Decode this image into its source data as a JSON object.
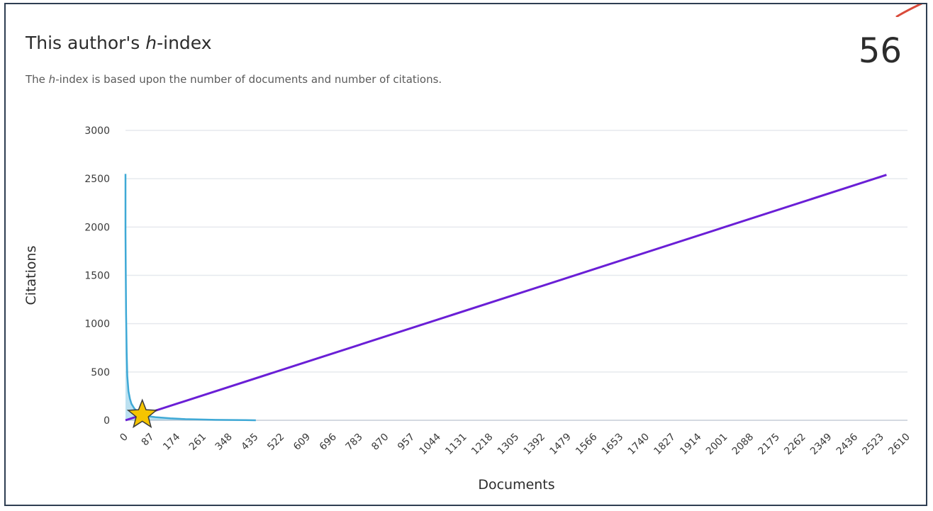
{
  "header": {
    "title_prefix": "This author's ",
    "title_italic": "h",
    "title_suffix": "-index",
    "subtitle_prefix": "The ",
    "subtitle_italic": "h",
    "subtitle_suffix": "-index is based upon the number of documents and number of citations.",
    "h_index_value": "56"
  },
  "colors": {
    "citations_curve": "#3fa9d6",
    "reference_line": "#6a1fd6",
    "star": "#f5c400",
    "grid": "#e6e9ee",
    "border": "#2e3e52",
    "accent": "#d94a3a"
  },
  "icons": {
    "marker": "star-icon"
  },
  "chart_data": {
    "type": "line",
    "xlabel": "Documents",
    "ylabel": "Citations",
    "xlim": [
      0,
      2610
    ],
    "ylim": [
      0,
      3000
    ],
    "x_ticks": [
      "0",
      "87",
      "174",
      "261",
      "348",
      "435",
      "522",
      "609",
      "696",
      "783",
      "870",
      "957",
      "1044",
      "1131",
      "1218",
      "1305",
      "1392",
      "1479",
      "1566",
      "1653",
      "1740",
      "1827",
      "1914",
      "2001",
      "2088",
      "2175",
      "2262",
      "2349",
      "2436",
      "2523",
      "2610"
    ],
    "y_ticks": [
      "0",
      "500",
      "1000",
      "1500",
      "2000",
      "2500",
      "3000"
    ],
    "grid": true,
    "series": [
      {
        "kind": "citations-per-document",
        "x": [
          0,
          0,
          1,
          2,
          4,
          6,
          10,
          15,
          20,
          30,
          40,
          56,
          80,
          100,
          150,
          200,
          300,
          400,
          435
        ],
        "y": [
          2550,
          1950,
          1500,
          1100,
          700,
          460,
          300,
          220,
          170,
          120,
          90,
          56,
          40,
          32,
          20,
          12,
          5,
          2,
          0
        ]
      },
      {
        "kind": "reference-line",
        "x": [
          0,
          2540
        ],
        "y": [
          0,
          2540
        ]
      }
    ],
    "h_index_point": {
      "x": 56,
      "y": 56
    }
  }
}
